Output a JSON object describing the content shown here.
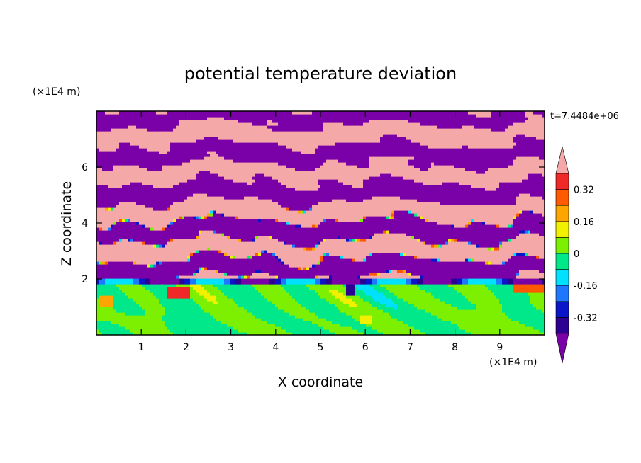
{
  "chart_data": {
    "type": "heatmap",
    "title": "potential temperature deviation",
    "xlabel": "X coordinate",
    "ylabel": "Z coordinate",
    "x_unit": "(×1E4 m)",
    "y_unit": "(×1E4 m)",
    "time_label": "t=7.4484e+06",
    "xlim": [
      0,
      10
    ],
    "ylim": [
      0,
      8
    ],
    "x_ticks": [
      1,
      2,
      3,
      4,
      5,
      6,
      7,
      8,
      9
    ],
    "y_ticks": [
      2,
      4,
      6
    ],
    "colorbar": {
      "levels": [
        -0.4,
        -0.32,
        -0.24,
        -0.16,
        -0.08,
        0,
        0.08,
        0.16,
        0.24,
        0.32,
        0.4
      ],
      "labels": [
        "-0.32",
        "-0.16",
        "0",
        "0.16",
        "0.32"
      ],
      "label_values": [
        -0.32,
        -0.16,
        0,
        0.16,
        0.32
      ],
      "colors": [
        "#7a00a8",
        "#2c0090",
        "#0a14c8",
        "#1e78ff",
        "#00e0ff",
        "#00e88a",
        "#7cf000",
        "#f0f000",
        "#ffa500",
        "#ff5a00",
        "#f02828",
        "#f5a8a8"
      ],
      "extend": "both"
    },
    "regions": [
      {
        "description_value": "upper layer z 2-8: alternating bands",
        "values": [
          -0.45,
          0.45
        ]
      },
      {
        "description_value": "lower layer z 0-2",
        "values": [
          -0.1,
          0.1
        ]
      }
    ]
  }
}
